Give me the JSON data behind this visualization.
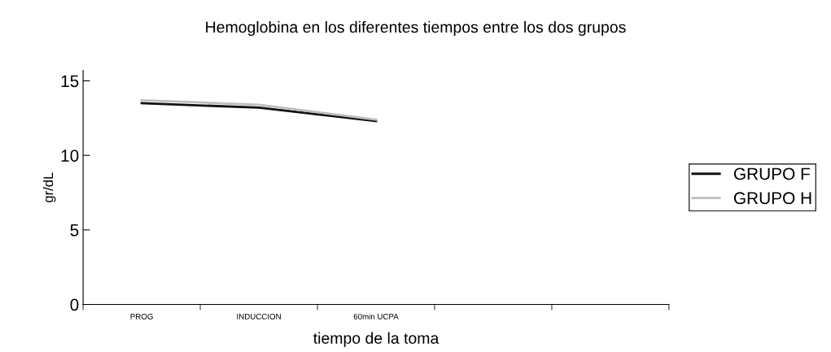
{
  "chart_data": {
    "type": "line",
    "title": "Hemoglobina en los diferentes tiempos entre los dos grupos",
    "xlabel": "tiempo de la toma",
    "ylabel": "gr/dL",
    "categories": [
      "PROG",
      "INDUCCION",
      "60min UCPA",
      null,
      null
    ],
    "series": [
      {
        "name": "GRUPO F",
        "color": "#111111",
        "values": [
          13.5,
          13.2,
          12.3,
          null,
          null
        ]
      },
      {
        "name": "GRUPO H",
        "color": "#bdbdbd",
        "values": [
          13.7,
          13.4,
          12.4,
          null,
          null
        ]
      }
    ],
    "ylim": [
      0,
      15.7
    ],
    "yticks": [
      0,
      5,
      10,
      15
    ],
    "grid": false,
    "legend": "right",
    "marker": "none",
    "line_style": "solid"
  }
}
